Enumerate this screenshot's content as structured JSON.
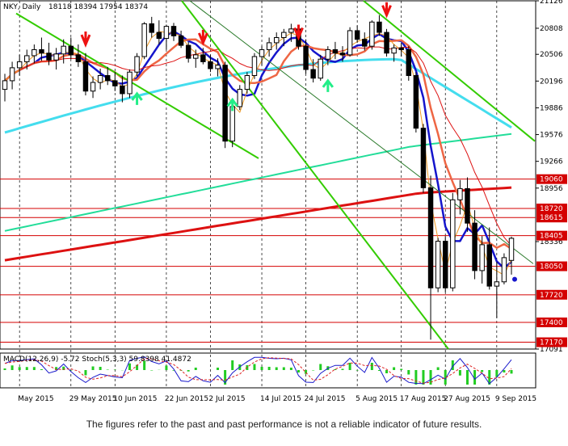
{
  "chart_data": {
    "type": "candlestick",
    "title": "NKY, Daily",
    "ohlc_header": "18118 18394 17954 18374",
    "indicator_label": "MACD(12,26,9) -5.72 Stoch(5,3,3) 59.8398 41.4872",
    "ylim": [
      17091,
      21126
    ],
    "y_ticks": [
      {
        "value": 21126,
        "label": "21126"
      },
      {
        "value": 20808,
        "label": "20808"
      },
      {
        "value": 20506,
        "label": "20506"
      },
      {
        "value": 20196,
        "label": "20196"
      },
      {
        "value": 19886,
        "label": "19886"
      },
      {
        "value": 19576,
        "label": "19576"
      },
      {
        "value": 19266,
        "label": "19266"
      },
      {
        "value": 18956,
        "label": "18956"
      },
      {
        "value": 18336,
        "label": "18336"
      },
      {
        "value": 17091,
        "label": "17091"
      }
    ],
    "levels": [
      {
        "value": 19060,
        "label": "19060"
      },
      {
        "value": 18720,
        "label": "18720"
      },
      {
        "value": 18615,
        "label": "18615"
      },
      {
        "value": 18405,
        "label": "18405"
      },
      {
        "value": 18050,
        "label": "18050"
      },
      {
        "value": 17720,
        "label": "17720"
      },
      {
        "value": 17400,
        "label": "17400"
      },
      {
        "value": 17170,
        "label": "17170"
      }
    ],
    "x_labels": [
      "May 2015",
      "29 May 2015",
      "10 Jun 2015",
      "22 Jun 2015",
      "2 Jul 2015",
      "14 Jul 2015",
      "24 Jul 2015",
      "5 Aug 2015",
      "17 Aug 2015",
      "27 Aug 2015",
      "9 Sep 2015"
    ],
    "candles": [
      {
        "o": 20100,
        "h": 20280,
        "l": 19960,
        "c": 20200
      },
      {
        "o": 20200,
        "h": 20420,
        "l": 20100,
        "c": 20350
      },
      {
        "o": 20350,
        "h": 20500,
        "l": 20260,
        "c": 20420
      },
      {
        "o": 20420,
        "h": 20560,
        "l": 20330,
        "c": 20490
      },
      {
        "o": 20490,
        "h": 20620,
        "l": 20400,
        "c": 20560
      },
      {
        "o": 20560,
        "h": 20700,
        "l": 20430,
        "c": 20520
      },
      {
        "o": 20520,
        "h": 20640,
        "l": 20380,
        "c": 20440
      },
      {
        "o": 20440,
        "h": 20580,
        "l": 20330,
        "c": 20510
      },
      {
        "o": 20510,
        "h": 20680,
        "l": 20400,
        "c": 20600
      },
      {
        "o": 20600,
        "h": 20700,
        "l": 20450,
        "c": 20500
      },
      {
        "o": 20500,
        "h": 20620,
        "l": 20360,
        "c": 20420
      },
      {
        "o": 20420,
        "h": 20520,
        "l": 20030,
        "c": 20080
      },
      {
        "o": 20080,
        "h": 20250,
        "l": 20000,
        "c": 20180
      },
      {
        "o": 20180,
        "h": 20340,
        "l": 20100,
        "c": 20260
      },
      {
        "o": 20260,
        "h": 20360,
        "l": 20150,
        "c": 20200
      },
      {
        "o": 20200,
        "h": 20300,
        "l": 20080,
        "c": 20140
      },
      {
        "o": 20140,
        "h": 20260,
        "l": 19950,
        "c": 20050
      },
      {
        "o": 20050,
        "h": 20330,
        "l": 20000,
        "c": 20300
      },
      {
        "o": 20300,
        "h": 20520,
        "l": 20250,
        "c": 20480
      },
      {
        "o": 20480,
        "h": 20880,
        "l": 20450,
        "c": 20860
      },
      {
        "o": 20860,
        "h": 20940,
        "l": 20700,
        "c": 20760
      },
      {
        "o": 20760,
        "h": 20900,
        "l": 20620,
        "c": 20690
      },
      {
        "o": 20690,
        "h": 20850,
        "l": 20560,
        "c": 20830
      },
      {
        "o": 20830,
        "h": 20870,
        "l": 20660,
        "c": 20720
      },
      {
        "o": 20720,
        "h": 20780,
        "l": 20580,
        "c": 20610
      },
      {
        "o": 20610,
        "h": 20650,
        "l": 20410,
        "c": 20460
      },
      {
        "o": 20460,
        "h": 20560,
        "l": 20350,
        "c": 20500
      },
      {
        "o": 20500,
        "h": 20580,
        "l": 20390,
        "c": 20420
      },
      {
        "o": 20420,
        "h": 20500,
        "l": 20300,
        "c": 20340
      },
      {
        "o": 20340,
        "h": 20460,
        "l": 20250,
        "c": 20380
      },
      {
        "o": 20380,
        "h": 20420,
        "l": 19420,
        "c": 19500
      },
      {
        "o": 19500,
        "h": 19980,
        "l": 19430,
        "c": 19900
      },
      {
        "o": 19900,
        "h": 20150,
        "l": 19860,
        "c": 20100
      },
      {
        "o": 20100,
        "h": 20300,
        "l": 20050,
        "c": 20260
      },
      {
        "o": 20260,
        "h": 20520,
        "l": 20220,
        "c": 20480
      },
      {
        "o": 20480,
        "h": 20600,
        "l": 20380,
        "c": 20560
      },
      {
        "o": 20560,
        "h": 20700,
        "l": 20480,
        "c": 20640
      },
      {
        "o": 20640,
        "h": 20760,
        "l": 20560,
        "c": 20700
      },
      {
        "o": 20700,
        "h": 20800,
        "l": 20600,
        "c": 20760
      },
      {
        "o": 20760,
        "h": 20860,
        "l": 20650,
        "c": 20800
      },
      {
        "o": 20800,
        "h": 20840,
        "l": 20560,
        "c": 20600
      },
      {
        "o": 20600,
        "h": 20680,
        "l": 20280,
        "c": 20330
      },
      {
        "o": 20330,
        "h": 20450,
        "l": 20180,
        "c": 20230
      },
      {
        "o": 20230,
        "h": 20500,
        "l": 20200,
        "c": 20450
      },
      {
        "o": 20450,
        "h": 20600,
        "l": 20380,
        "c": 20560
      },
      {
        "o": 20560,
        "h": 20650,
        "l": 20450,
        "c": 20520
      },
      {
        "o": 20520,
        "h": 20600,
        "l": 20420,
        "c": 20500
      },
      {
        "o": 20500,
        "h": 20820,
        "l": 20480,
        "c": 20780
      },
      {
        "o": 20780,
        "h": 20840,
        "l": 20640,
        "c": 20680
      },
      {
        "o": 20680,
        "h": 20760,
        "l": 20550,
        "c": 20600
      },
      {
        "o": 20600,
        "h": 20900,
        "l": 20560,
        "c": 20880
      },
      {
        "o": 20880,
        "h": 20960,
        "l": 20720,
        "c": 20760
      },
      {
        "o": 20760,
        "h": 20800,
        "l": 20480,
        "c": 20520
      },
      {
        "o": 20520,
        "h": 20620,
        "l": 20420,
        "c": 20580
      },
      {
        "o": 20580,
        "h": 20640,
        "l": 20480,
        "c": 20560
      },
      {
        "o": 20560,
        "h": 20600,
        "l": 20200,
        "c": 20260
      },
      {
        "o": 20260,
        "h": 20300,
        "l": 19600,
        "c": 19650
      },
      {
        "o": 19650,
        "h": 19700,
        "l": 18900,
        "c": 18960
      },
      {
        "o": 18960,
        "h": 19100,
        "l": 17200,
        "c": 17800
      },
      {
        "o": 17800,
        "h": 18380,
        "l": 17750,
        "c": 18340
      },
      {
        "o": 18340,
        "h": 18400,
        "l": 17750,
        "c": 17800
      },
      {
        "o": 17800,
        "h": 18900,
        "l": 17760,
        "c": 18820
      },
      {
        "o": 18820,
        "h": 19050,
        "l": 18650,
        "c": 18950
      },
      {
        "o": 18950,
        "h": 19080,
        "l": 18450,
        "c": 18550
      },
      {
        "o": 18550,
        "h": 18700,
        "l": 17900,
        "c": 18000
      },
      {
        "o": 18000,
        "h": 18400,
        "l": 17850,
        "c": 18300
      },
      {
        "o": 18300,
        "h": 18500,
        "l": 17780,
        "c": 17820
      },
      {
        "o": 17820,
        "h": 18100,
        "l": 17450,
        "c": 17870
      },
      {
        "o": 17870,
        "h": 18200,
        "l": 17840,
        "c": 18150
      },
      {
        "o": 18118,
        "h": 18394,
        "l": 17954,
        "c": 18374
      }
    ]
  },
  "footer": {
    "disclaimer": "The figures refer to the past and past performance is not a reliable indicator of future results."
  },
  "colors": {
    "bull_fill": "#ffffff",
    "bear_fill": "#000000",
    "level_line": "#d40000",
    "level_label_bg": "#d40000",
    "trendline": "#33cc00",
    "ma_red": "#dd1111",
    "ma_teal": "#22dd99",
    "ma_cyan": "#44ddee",
    "ma_blue": "#1515cc",
    "ma_orange": "#ee6644",
    "arrow_red": "#ee1111",
    "arrow_green": "#22ee88",
    "macd_hist": "#22cc22"
  }
}
